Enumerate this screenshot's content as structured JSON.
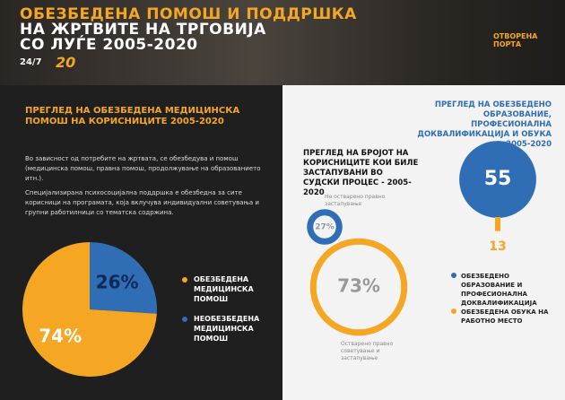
{
  "header": {
    "title_line1": "ОБЕЗБЕДЕНА ПОМОШ И ПОДДРШКА",
    "title_line2": "НА ЖРТВИТЕ НА ТРГОВИЈА",
    "title_line3": "СО ЛУЃЕ 2005-2020",
    "logo_left": "24/7",
    "logo_years": "20",
    "logo_right": "ОТВОРЕНА ПОРТА"
  },
  "left": {
    "paragraph1": "Во зависност од потребите на жртвата, се обезбедува и помош (медицинска помош, правна помош, продолжување на образованието итн.).",
    "paragraph2": "Специјализирана психосоцијална поддршка е обезбедна за сите корисници на програмата, која вклучува индивидуални советувања и групни работилници со тематска содржина."
  },
  "chart_data": [
    {
      "type": "pie",
      "title": "ПРЕГЛЕД НА ОБЕЗБЕДЕНА МЕДИЦИНСКА ПОМОШ НА КОРИСНИЦИТЕ 2005-2020",
      "categories": [
        "ОБЕЗБЕДЕНА МЕДИЦИНСКА ПОМОШ",
        "НЕОБЕЗБЕДЕНА МЕДИЦИНСКА ПОМОШ"
      ],
      "values": [
        74,
        26
      ],
      "value_labels": [
        "74%",
        "26%"
      ],
      "colors": [
        "#f5a623",
        "#2f6db5"
      ]
    },
    {
      "type": "bubble",
      "title": "ПРЕГЛЕД НА БРОЈОТ НА КОРИСНИЦИТЕ КОИ БИЛЕ ЗАСТАПУВАНИ ВО СУДСКИ ПРОЦЕС - 2005-2020",
      "categories": [
        "Не остварено правно застапување",
        "Остварено правно советување и застапување"
      ],
      "values": [
        27,
        73
      ],
      "value_labels": [
        "27%",
        "73%"
      ],
      "colors": [
        "#2f6db5",
        "#f5a623"
      ]
    },
    {
      "type": "circle-bar",
      "title": "ПРЕГЛЕД НА ОБЕЗБЕДЕНО ОБРАЗОВАНИЕ, ПРОФЕСИОНАЛНА ДОКВАЛИФИКАЦИЈА И ОБУКА 2005-2020",
      "categories": [
        "ОБЕЗБЕДЕНО ОБРАЗОВАНИЕ И ПРОФЕСИОНАЛНА ДОКВАЛИФИКАЦИЈА",
        "ОБЕЗБЕДЕНА ОБУКА НА РАБОТНО МЕСТО"
      ],
      "values": [
        55,
        13
      ],
      "colors": [
        "#2f6db5",
        "#f5a623"
      ]
    }
  ]
}
